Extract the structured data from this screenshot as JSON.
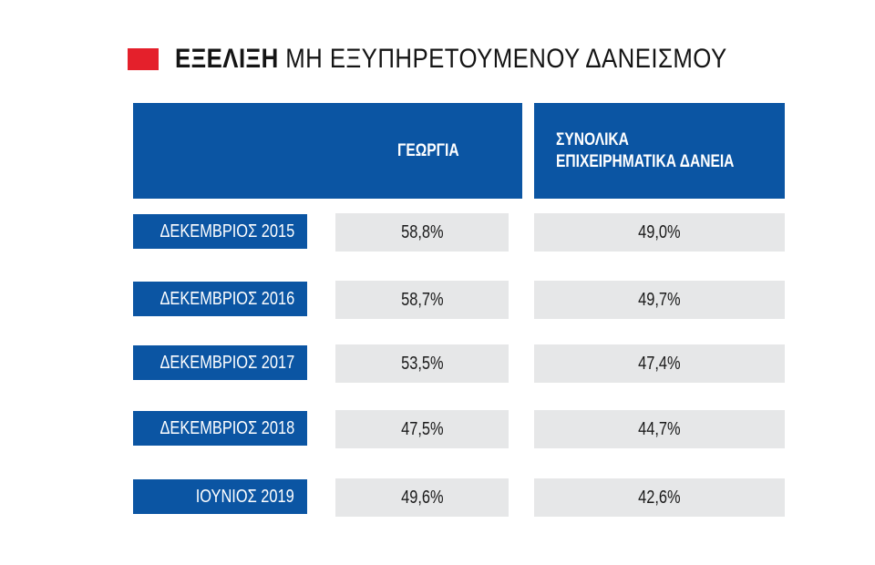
{
  "title": {
    "bold": "ΕΞΕΛΙΞΗ",
    "normal": "ΜΗ ΕΞΥΠΗΡΕΤΟΥΜΕΝΟΥ ΔΑΝΕΙΣΜΟΥ"
  },
  "colors": {
    "accent_red": "#e4202b",
    "header_blue": "#0b55a3",
    "cell_gray": "#e6e7e8"
  },
  "chart_data": {
    "type": "table",
    "title": "ΕΞΕΛΙΞΗ ΜΗ ΕΞΥΠΗΡΕΤΟΥΜΕΝΟΥ ΔΑΝΕΙΣΜΟΥ",
    "columns": [
      "ΓΕΩΡΓΙΑ",
      "ΣΥΝΟΛΙΚΑ ΕΠΙΧΕΙΡΗΜΑΤΙΚΑ ΔΑΝΕΙΑ"
    ],
    "header_lines": {
      "col1": [
        "ΓΕΩΡΓΙΑ"
      ],
      "col2": [
        "ΣΥΝΟΛΙΚΑ",
        "ΕΠΙΧΕΙΡΗΜΑΤΙΚΑ ΔΑΝΕΙΑ"
      ]
    },
    "categories": [
      "ΔΕΚΕΜΒΡΙΟΣ 2015",
      "ΔΕΚΕΜΒΡΙΟΣ 2016",
      "ΔΕΚΕΜΒΡΙΟΣ 2017",
      "ΔΕΚΕΜΒΡΙΟΣ 2018",
      "ΙΟΥΝΙΟΣ 2019"
    ],
    "series": [
      {
        "name": "ΓΕΩΡΓΙΑ",
        "values": [
          58.8,
          58.7,
          53.5,
          47.5,
          49.6
        ],
        "labels": [
          "58,8%",
          "58,7%",
          "53,5%",
          "47,5%",
          "49,6%"
        ]
      },
      {
        "name": "ΣΥΝΟΛΙΚΑ ΕΠΙΧΕΙΡΗΜΑΤΙΚΑ ΔΑΝΕΙΑ",
        "values": [
          49.0,
          49.7,
          47.4,
          44.7,
          42.6
        ],
        "labels": [
          "49,0%",
          "49,7%",
          "47,4%",
          "44,7%",
          "42,6%"
        ]
      }
    ],
    "unit": "%"
  }
}
